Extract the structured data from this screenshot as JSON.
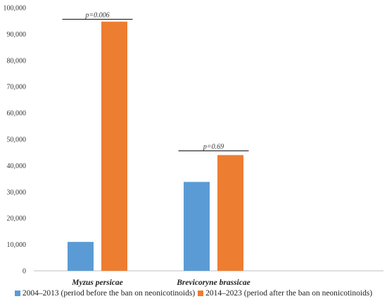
{
  "chart_data": {
    "type": "bar",
    "categories": [
      "Myzus persicae",
      "Brevicoryne brassicae"
    ],
    "series": [
      {
        "name": "2004–2013 (period before the ban on neonicotinoids)",
        "values": [
          11000,
          33800
        ],
        "color": "#5b9bd5"
      },
      {
        "name": "2014–2023 (period after the ban on neonicotinoids)",
        "values": [
          94700,
          44000
        ],
        "color": "#ed7d31"
      }
    ],
    "ylim": [
      0,
      100000
    ],
    "yticks": [
      0,
      10000,
      20000,
      30000,
      40000,
      50000,
      60000,
      70000,
      80000,
      90000,
      100000
    ],
    "ytick_labels": [
      "0",
      "10,000",
      "20,000",
      "30,000",
      "40,000",
      "50,000",
      "60,000",
      "70,000",
      "80,000",
      "90,000",
      "100,000"
    ],
    "annotations": [
      {
        "category_index": 0,
        "text": "p=0.006",
        "y": 95600
      },
      {
        "category_index": 1,
        "text": "p=0.69",
        "y": 45600
      }
    ],
    "grid": false,
    "legend_position": "bottom",
    "title": "",
    "xlabel": "",
    "ylabel": ""
  }
}
